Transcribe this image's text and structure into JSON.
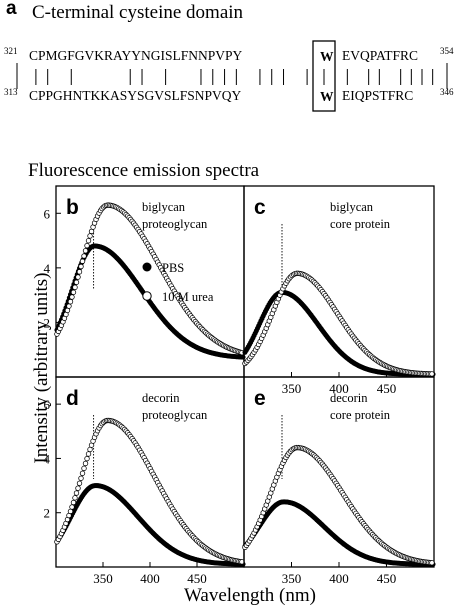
{
  "figure": {
    "panel_a": {
      "letter": "a",
      "title": "C-terminal cysteine domain",
      "seq1": {
        "start": "321",
        "left": "CPMGFGVKRAYYNGISLFNNPVPY",
        "w": "W",
        "right": "EVQPATFRC",
        "end": "354"
      },
      "seq2": {
        "start": "313",
        "left": "CPPGHNTKKASYSGVSLFSNPVQY",
        "w": "W",
        "right": "EIQPSTFRC",
        "end": "346"
      },
      "match_left": [
        1,
        1,
        0,
        1,
        0,
        0,
        0,
        0,
        1,
        1,
        0,
        1,
        0,
        0,
        1,
        1,
        1,
        1,
        0,
        1,
        1,
        1,
        0,
        1
      ],
      "match_right": [
        1,
        0,
        1,
        1,
        0,
        1,
        1,
        1,
        1
      ]
    },
    "spectra_title": "Fluorescence emission spectra",
    "ylabel": "Intensity (arbitrary units)",
    "xlabel": "Wavelength (nm)",
    "legend": {
      "pbs": "PBS",
      "urea": "10 M urea"
    }
  },
  "chart_data": [
    {
      "type": "scatter",
      "panel": "b",
      "label1": "biglycan",
      "label2": "proteoglycan",
      "xlim": [
        300,
        500
      ],
      "ylim": [
        0,
        7
      ],
      "yticks": [
        2,
        4,
        6
      ],
      "marker_line": 340,
      "series": [
        {
          "name": "PBS",
          "peak_x": 341,
          "peak_y": 4.8,
          "base_y": 0.7,
          "sigma_l": 24,
          "sigma_r": 50
        },
        {
          "name": "10 M urea",
          "peak_x": 355,
          "peak_y": 6.3,
          "base_y": 0.7,
          "sigma_l": 28,
          "sigma_r": 55
        }
      ]
    },
    {
      "type": "scatter",
      "panel": "c",
      "label1": "biglycan",
      "label2": "core protein",
      "xlim": [
        300,
        500
      ],
      "ylim": [
        0,
        7
      ],
      "xticks": [
        350,
        400,
        450
      ],
      "marker_line": 340,
      "series": [
        {
          "name": "PBS",
          "peak_x": 340,
          "peak_y": 3.1,
          "base_y": 0.1,
          "sigma_l": 24,
          "sigma_r": 38
        },
        {
          "name": "10 M urea",
          "peak_x": 356,
          "peak_y": 3.8,
          "base_y": 0.1,
          "sigma_l": 26,
          "sigma_r": 42
        }
      ]
    },
    {
      "type": "scatter",
      "panel": "d",
      "label1": "decorin",
      "label2": "proteoglycan",
      "xlim": [
        300,
        500
      ],
      "ylim": [
        0,
        7
      ],
      "yticks": [
        2,
        4,
        6
      ],
      "xticks": [
        350,
        400,
        450
      ],
      "marker_line": 340,
      "series": [
        {
          "name": "PBS",
          "peak_x": 342,
          "peak_y": 3.0,
          "base_y": 0.1,
          "sigma_l": 26,
          "sigma_r": 45
        },
        {
          "name": "10 M urea",
          "peak_x": 355,
          "peak_y": 5.4,
          "base_y": 0.1,
          "sigma_l": 28,
          "sigma_r": 50
        }
      ]
    },
    {
      "type": "scatter",
      "panel": "e",
      "label1": "decorin",
      "label2": "core protein",
      "xlim": [
        300,
        500
      ],
      "ylim": [
        0,
        7
      ],
      "xticks": [
        350,
        400,
        450
      ],
      "marker_line": 340,
      "series": [
        {
          "name": "PBS",
          "peak_x": 342,
          "peak_y": 2.4,
          "base_y": 0.1,
          "sigma_l": 26,
          "sigma_r": 42
        },
        {
          "name": "10 M urea",
          "peak_x": 356,
          "peak_y": 4.4,
          "base_y": 0.1,
          "sigma_l": 28,
          "sigma_r": 48
        }
      ]
    }
  ]
}
